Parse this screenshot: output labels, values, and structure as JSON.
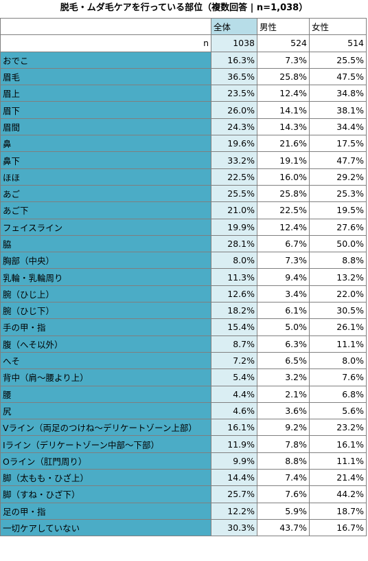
{
  "title": "脱毛・ムダ毛ケアを行っている部位（複数回答 | n=1,038）",
  "header": {
    "total": "全体",
    "male": "男性",
    "female": "女性"
  },
  "n_row": {
    "label": "n",
    "total": "1038",
    "male": "524",
    "female": "514"
  },
  "rows": [
    {
      "label": "おでこ",
      "total": "16.3%",
      "male": "7.3%",
      "female": "25.5%"
    },
    {
      "label": "眉毛",
      "total": "36.5%",
      "male": "25.8%",
      "female": "47.5%"
    },
    {
      "label": "眉上",
      "total": "23.5%",
      "male": "12.4%",
      "female": "34.8%"
    },
    {
      "label": "眉下",
      "total": "26.0%",
      "male": "14.1%",
      "female": "38.1%"
    },
    {
      "label": "眉間",
      "total": "24.3%",
      "male": "14.3%",
      "female": "34.4%"
    },
    {
      "label": "鼻",
      "total": "19.6%",
      "male": "21.6%",
      "female": "17.5%"
    },
    {
      "label": "鼻下",
      "total": "33.2%",
      "male": "19.1%",
      "female": "47.7%"
    },
    {
      "label": "ほほ",
      "total": "22.5%",
      "male": "16.0%",
      "female": "29.2%"
    },
    {
      "label": "あご",
      "total": "25.5%",
      "male": "25.8%",
      "female": "25.3%"
    },
    {
      "label": "あご下",
      "total": "21.0%",
      "male": "22.5%",
      "female": "19.5%"
    },
    {
      "label": "フェイスライン",
      "total": "19.9%",
      "male": "12.4%",
      "female": "27.6%"
    },
    {
      "label": "脇",
      "total": "28.1%",
      "male": "6.7%",
      "female": "50.0%"
    },
    {
      "label": "胸部（中央）",
      "total": "8.0%",
      "male": "7.3%",
      "female": "8.8%"
    },
    {
      "label": "乳輪・乳輪周り",
      "total": "11.3%",
      "male": "9.4%",
      "female": "13.2%"
    },
    {
      "label": "腕（ひじ上）",
      "total": "12.6%",
      "male": "3.4%",
      "female": "22.0%"
    },
    {
      "label": "腕（ひじ下）",
      "total": "18.2%",
      "male": "6.1%",
      "female": "30.5%"
    },
    {
      "label": "手の甲・指",
      "total": "15.4%",
      "male": "5.0%",
      "female": "26.1%"
    },
    {
      "label": "腹（へそ以外）",
      "total": "8.7%",
      "male": "6.3%",
      "female": "11.1%"
    },
    {
      "label": "へそ",
      "total": "7.2%",
      "male": "6.5%",
      "female": "8.0%"
    },
    {
      "label": "背中（肩～腰より上）",
      "total": "5.4%",
      "male": "3.2%",
      "female": "7.6%"
    },
    {
      "label": "腰",
      "total": "4.4%",
      "male": "2.1%",
      "female": "6.8%"
    },
    {
      "label": "尻",
      "total": "4.6%",
      "male": "3.6%",
      "female": "5.6%"
    },
    {
      "label": "Vライン（両足のつけね～デリケートゾーン上部）",
      "total": "16.1%",
      "male": "9.2%",
      "female": "23.2%"
    },
    {
      "label": "Iライン（デリケートゾーン中部～下部）",
      "total": "11.9%",
      "male": "7.8%",
      "female": "16.1%"
    },
    {
      "label": "Oライン（肛門周り）",
      "total": "9.9%",
      "male": "8.8%",
      "female": "11.1%"
    },
    {
      "label": "脚（太もも・ひざ上）",
      "total": "14.4%",
      "male": "7.4%",
      "female": "21.4%"
    },
    {
      "label": "脚（すね・ひざ下）",
      "total": "25.7%",
      "male": "7.6%",
      "female": "44.2%"
    },
    {
      "label": "足の甲・指",
      "total": "12.2%",
      "male": "5.9%",
      "female": "18.7%"
    },
    {
      "label": "一切ケアしていない",
      "total": "30.3%",
      "male": "43.7%",
      "female": "16.7%"
    }
  ]
}
